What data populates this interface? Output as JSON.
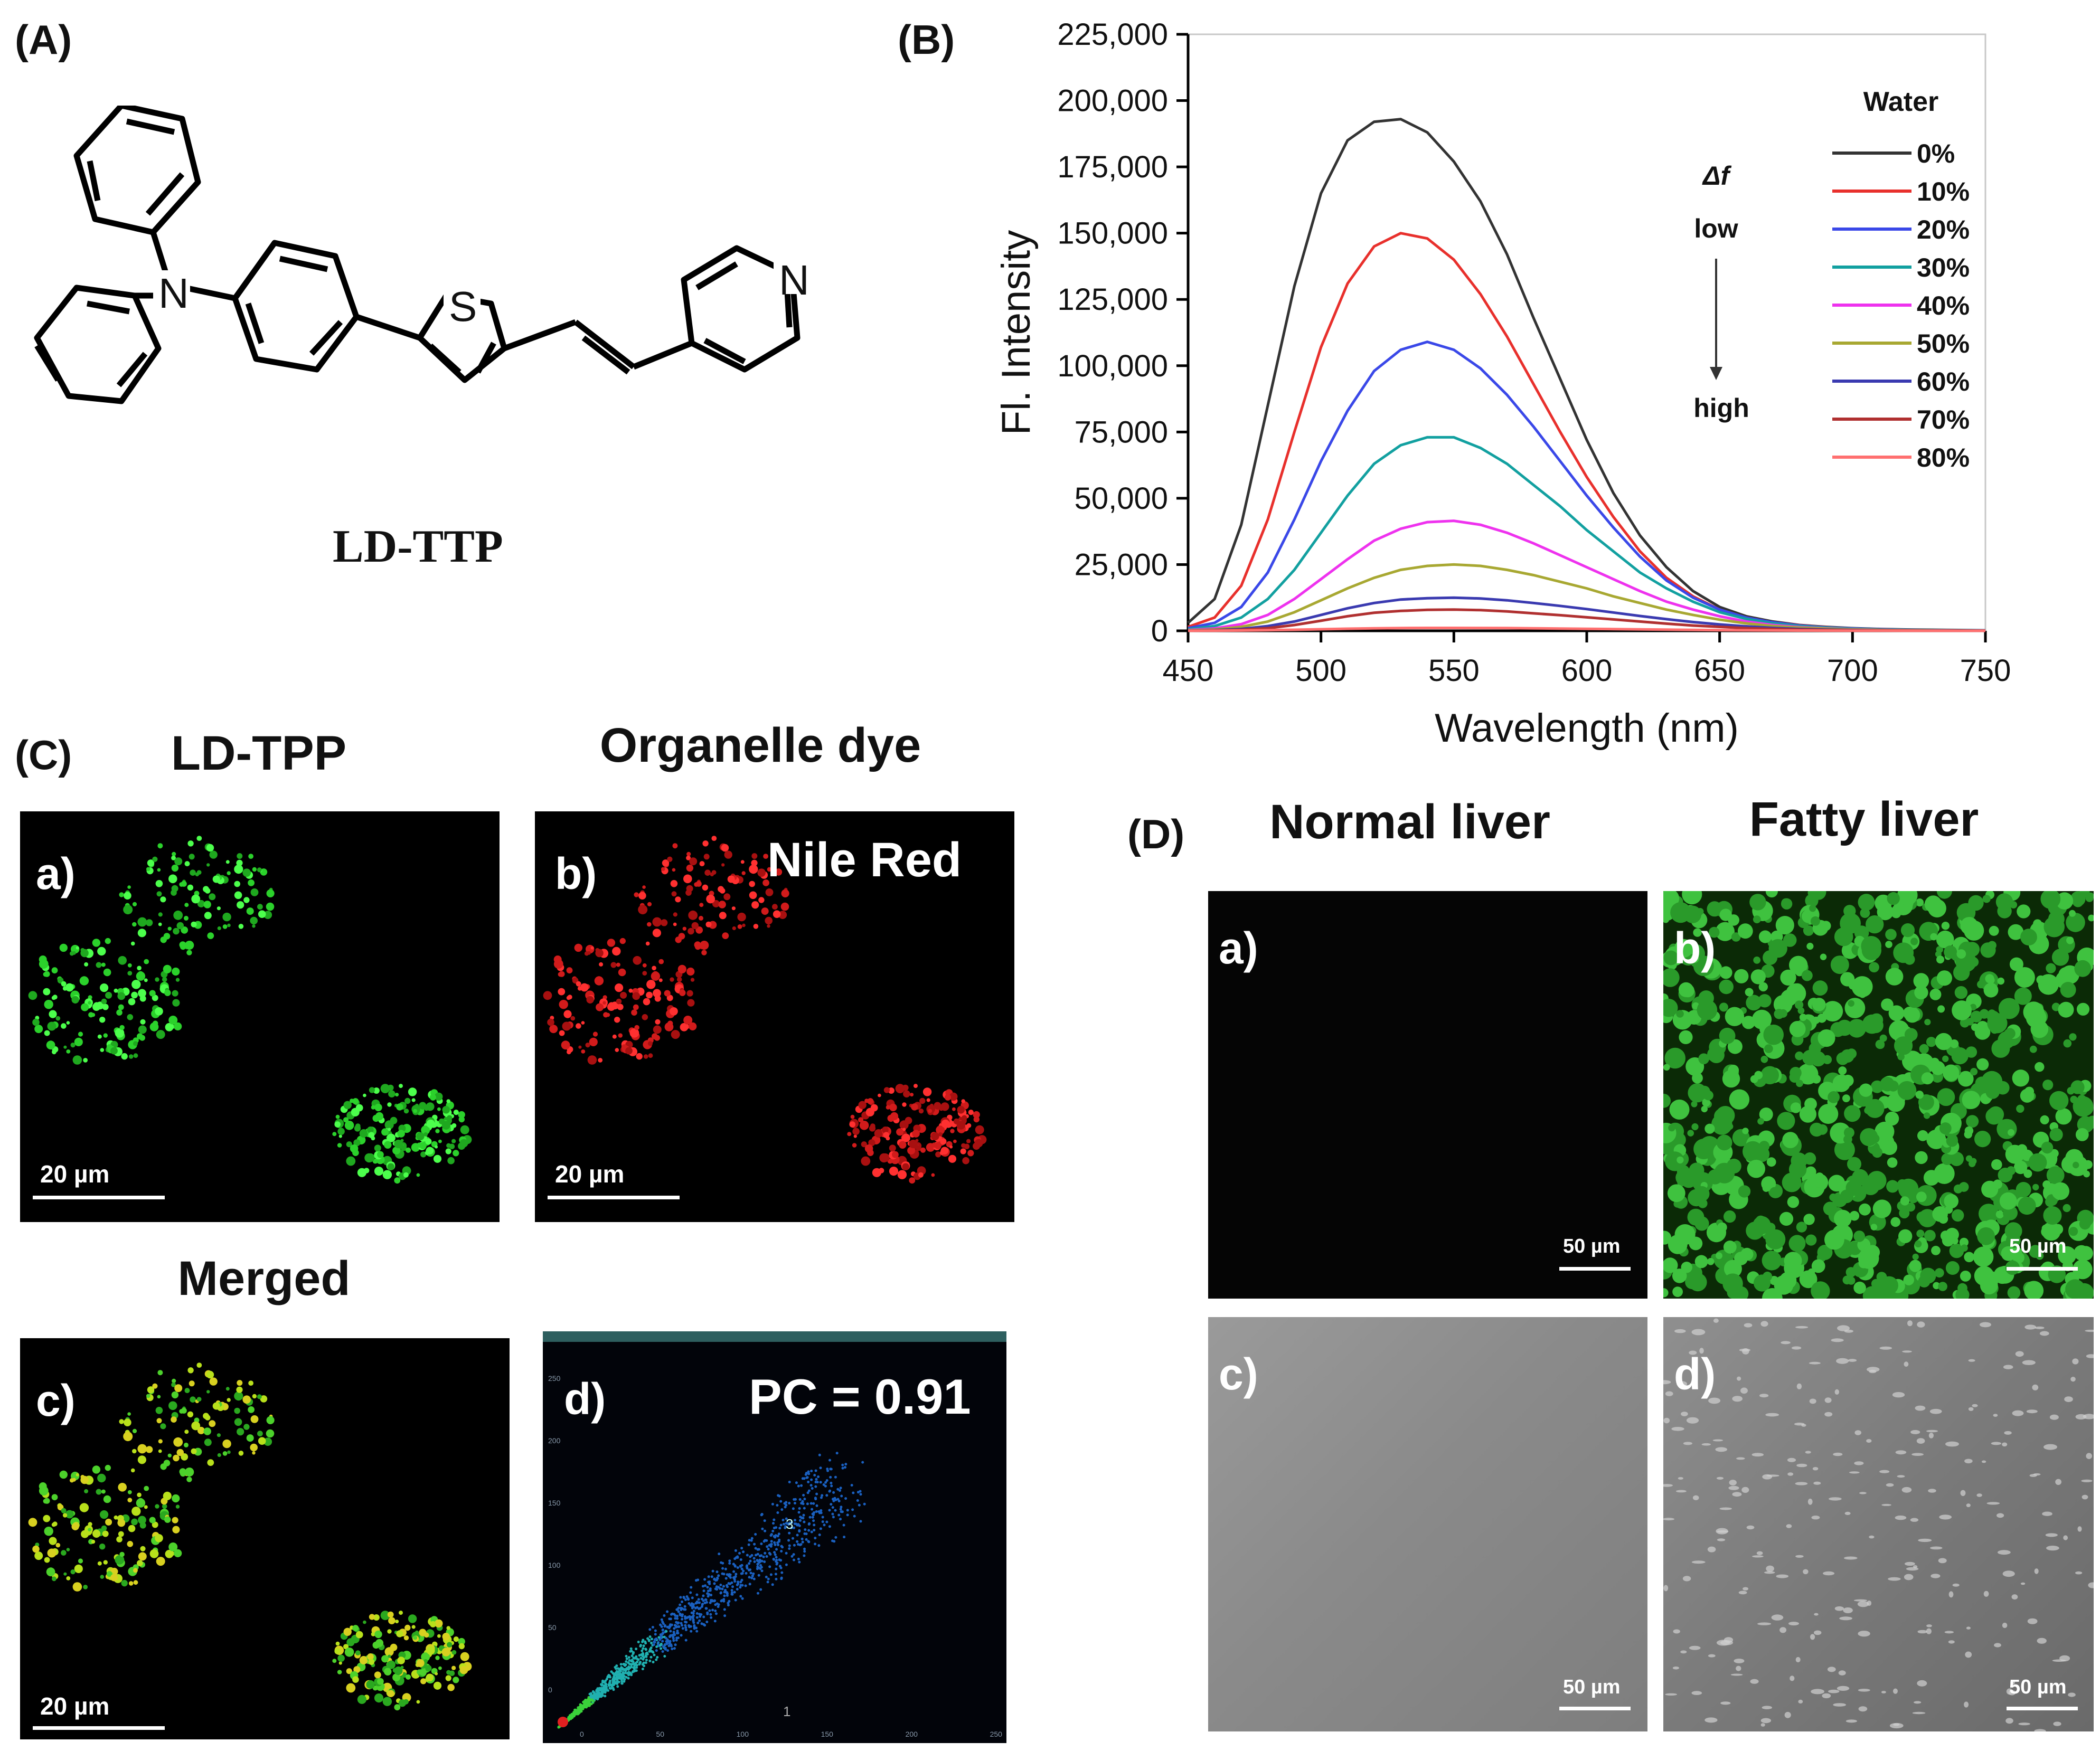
{
  "panels": {
    "A": {
      "letter": "(A)",
      "compound_name": "LD-TTP",
      "atoms": {
        "n1": "N",
        "s": "S",
        "n2": "N"
      }
    },
    "B": {
      "letter": "(B)",
      "legend_title": "Water",
      "annot_delta": "Δf",
      "annot_low": "low",
      "annot_high": "high"
    },
    "C": {
      "letter": "(C)",
      "titles": {
        "a": "LD-TPP",
        "b": "Organelle dye",
        "c": "Merged"
      },
      "labels": {
        "a": "a)",
        "b": "b)",
        "c": "c)",
        "d": "d)"
      },
      "nile_red": "Nile Red",
      "pc": "PC = 0.91",
      "scale_bar": "20 µm",
      "scatter_ticks_y": [
        "250",
        "200",
        "150",
        "100",
        "50",
        "0"
      ],
      "scatter_ticks_x": [
        "0",
        "50",
        "100",
        "150",
        "200",
        "250"
      ],
      "scatter_marks": {
        "q3": "3",
        "q1": "1"
      }
    },
    "D": {
      "letter": "(D)",
      "titles": {
        "normal": "Normal liver",
        "fatty": "Fatty liver"
      },
      "labels": {
        "a": "a)",
        "b": "b)",
        "c": "c)",
        "d": "d)"
      },
      "scale_bar": "50 µm"
    }
  },
  "chart_data": {
    "type": "line",
    "title": "",
    "xlabel": "Wavelength (nm)",
    "ylabel": "Fl. Intensity",
    "xlim": [
      450,
      750
    ],
    "ylim": [
      0,
      225000
    ],
    "x_ticks": [
      "450",
      "500",
      "550",
      "600",
      "650",
      "700",
      "750"
    ],
    "y_ticks": [
      "0",
      "25,000",
      "50,000",
      "75,000",
      "100,000",
      "125,000",
      "150,000",
      "175,000",
      "200,000",
      "225,000"
    ],
    "legend_position": "top-right",
    "x": [
      450,
      460,
      470,
      480,
      490,
      500,
      510,
      520,
      530,
      540,
      550,
      560,
      570,
      580,
      590,
      600,
      610,
      620,
      630,
      640,
      650,
      660,
      670,
      680,
      690,
      700,
      710,
      720,
      730,
      740,
      750
    ],
    "series": [
      {
        "name": "0%",
        "color": "#333333",
        "values": [
          3000,
          12000,
          40000,
          85000,
          130000,
          165000,
          185000,
          192000,
          193000,
          188000,
          177000,
          162000,
          142000,
          118000,
          95000,
          72000,
          52000,
          36000,
          24000,
          15000,
          9000,
          5500,
          3500,
          2200,
          1500,
          1000,
          700,
          500,
          400,
          300,
          200
        ]
      },
      {
        "name": "10%",
        "color": "#e8302c",
        "values": [
          1500,
          5000,
          17000,
          42000,
          75000,
          107000,
          131000,
          145000,
          150000,
          148000,
          140000,
          127000,
          111000,
          93000,
          75000,
          58000,
          43000,
          30000,
          20000,
          13000,
          8000,
          5000,
          3200,
          2100,
          1400,
          900,
          600,
          400,
          300,
          200,
          150
        ]
      },
      {
        "name": "20%",
        "color": "#3a48e8",
        "values": [
          1000,
          3000,
          9000,
          22000,
          42000,
          64000,
          83000,
          98000,
          106000,
          109000,
          106000,
          99000,
          89000,
          77000,
          64000,
          51000,
          39000,
          28000,
          19000,
          12500,
          8000,
          5000,
          3200,
          2000,
          1300,
          900,
          600,
          400,
          300,
          200,
          150
        ]
      },
      {
        "name": "30%",
        "color": "#12a0a0",
        "values": [
          600,
          1800,
          5000,
          12000,
          23000,
          37000,
          51000,
          63000,
          70000,
          73000,
          73000,
          69000,
          63000,
          55000,
          47000,
          38000,
          30000,
          22000,
          16000,
          11000,
          7000,
          4500,
          2800,
          1800,
          1200,
          800,
          500,
          350,
          250,
          180,
          120
        ]
      },
      {
        "name": "40%",
        "color": "#ee32ee",
        "values": [
          300,
          900,
          2500,
          6000,
          12000,
          19500,
          27000,
          34000,
          38500,
          41000,
          41500,
          40000,
          37000,
          33000,
          28500,
          24000,
          19500,
          15000,
          11000,
          8000,
          5500,
          3500,
          2200,
          1400,
          900,
          600,
          400,
          250,
          180,
          120,
          80
        ]
      },
      {
        "name": "50%",
        "color": "#a8a832",
        "values": [
          200,
          500,
          1500,
          3500,
          7000,
          11500,
          16000,
          20000,
          23000,
          24500,
          25000,
          24500,
          23000,
          21000,
          18500,
          16000,
          13000,
          10500,
          8000,
          6000,
          4200,
          2800,
          1800,
          1200,
          800,
          500,
          350,
          250,
          180,
          120,
          80
        ]
      },
      {
        "name": "60%",
        "color": "#3a3ab0",
        "values": [
          100,
          250,
          700,
          1800,
          3500,
          6000,
          8500,
          10500,
          11800,
          12300,
          12500,
          12200,
          11500,
          10500,
          9400,
          8200,
          6900,
          5600,
          4400,
          3300,
          2400,
          1700,
          1100,
          700,
          450,
          300,
          200,
          150,
          100,
          80,
          60
        ]
      },
      {
        "name": "70%",
        "color": "#b03030",
        "values": [
          50,
          150,
          400,
          1000,
          2200,
          3800,
          5500,
          6800,
          7500,
          7900,
          8000,
          7800,
          7300,
          6600,
          5900,
          5100,
          4300,
          3500,
          2700,
          2000,
          1500,
          1000,
          700,
          450,
          300,
          200,
          150,
          100,
          80,
          60,
          40
        ]
      },
      {
        "name": "80%",
        "color": "#ff7070",
        "values": [
          20,
          50,
          120,
          250,
          400,
          600,
          800,
          950,
          1050,
          1100,
          1100,
          1080,
          1030,
          950,
          860,
          760,
          650,
          540,
          440,
          340,
          260,
          190,
          140,
          100,
          70,
          50,
          35,
          25,
          20,
          15,
          10
        ]
      }
    ]
  }
}
